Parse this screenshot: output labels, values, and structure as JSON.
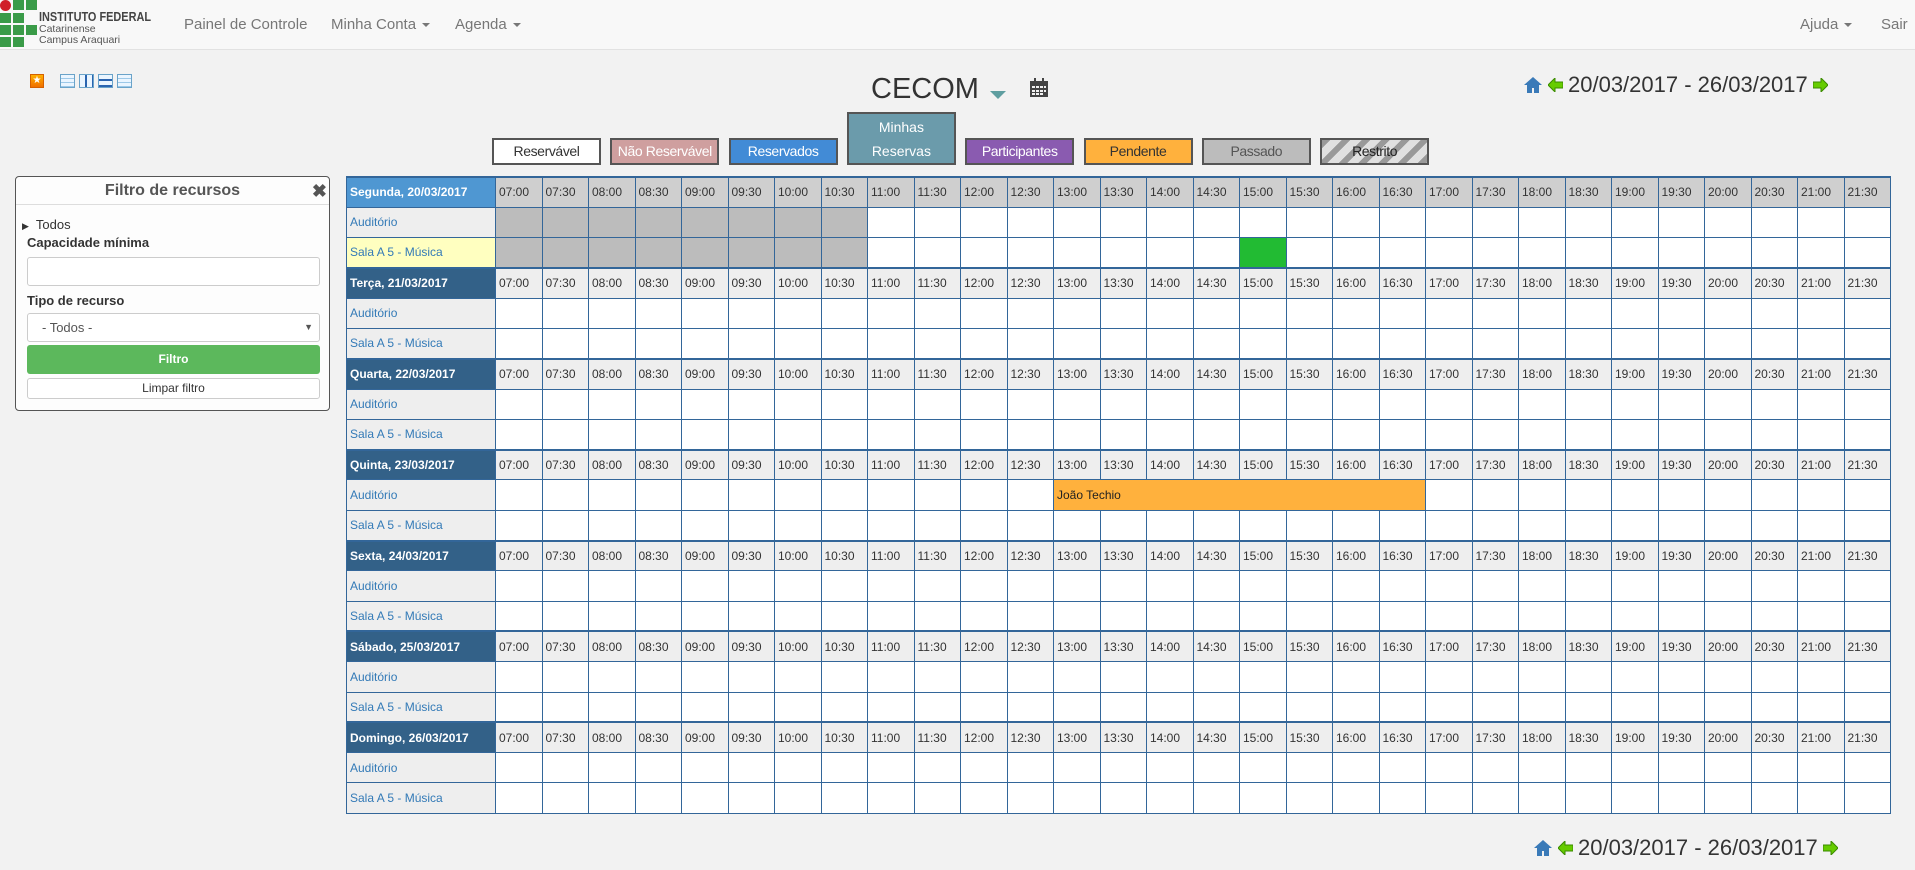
{
  "nav": {
    "logo": {
      "line1": "INSTITUTO FEDERAL",
      "line2": "Catarinense",
      "line3": "Campus Araquari"
    },
    "items": [
      {
        "label": "Painel de Controle",
        "dropdown": false
      },
      {
        "label": "Minha Conta",
        "dropdown": true
      },
      {
        "label": "Agenda",
        "dropdown": true
      }
    ],
    "right": [
      {
        "label": "Ajuda",
        "dropdown": true
      },
      {
        "label": "Sair",
        "dropdown": false
      }
    ]
  },
  "toolbar": {
    "icons": [
      "favorite-star-icon",
      "view-standard-icon",
      "view-columns-icon",
      "view-rows-icon",
      "view-compact-icon"
    ]
  },
  "schedule": {
    "title": "CECOM",
    "date_range": "20/03/2017 - 26/03/2017"
  },
  "legend": [
    {
      "label": "Reservável",
      "bg": "#ffffff",
      "fg": "#333333"
    },
    {
      "label": "Não Reservável",
      "bg": "#cf9f9f",
      "fg": "#ffffff"
    },
    {
      "label": "Reservados",
      "bg": "#428bd6",
      "fg": "#ffffff"
    },
    {
      "label": "Minhas Reservas",
      "bg": "#6b9bab",
      "fg": "#ffffff"
    },
    {
      "label": "Participantes",
      "bg": "#8a5bb0",
      "fg": "#ffffff"
    },
    {
      "label": "Pendente",
      "bg": "#ffb13d",
      "fg": "#333333"
    },
    {
      "label": "Passado",
      "bg": "#bcbcbc",
      "fg": "#555555"
    },
    {
      "label": "Restrito",
      "bg": "striped-gray",
      "fg": "#222222"
    }
  ],
  "filter": {
    "title": "Filtro de recursos",
    "tree_root": "Todos",
    "min_capacity_label": "Capacidade mínima",
    "min_capacity_value": "",
    "resource_type_label": "Tipo de recurso",
    "resource_type_value": "- Todos -",
    "filter_button": "Filtro",
    "clear_button": "Limpar filtro"
  },
  "times": [
    "07:00",
    "07:30",
    "08:00",
    "08:30",
    "09:00",
    "09:30",
    "10:00",
    "10:30",
    "11:00",
    "11:30",
    "12:00",
    "12:30",
    "13:00",
    "13:30",
    "14:00",
    "14:30",
    "15:00",
    "15:30",
    "16:00",
    "16:30",
    "17:00",
    "17:30",
    "18:00",
    "18:30",
    "19:00",
    "19:30",
    "20:00",
    "20:30",
    "21:00",
    "21:30"
  ],
  "resources": [
    "Auditório",
    "Sala A 5 - Música"
  ],
  "days": [
    {
      "label": "Segunda, 20/03/2017",
      "past_until": "11:00",
      "highlight_resource": 1,
      "events": [
        {
          "resource": 1,
          "start": "15:00",
          "end": "15:30",
          "type": "mine",
          "label": ""
        }
      ]
    },
    {
      "label": "Terça, 21/03/2017",
      "events": []
    },
    {
      "label": "Quarta, 22/03/2017",
      "events": []
    },
    {
      "label": "Quinta, 23/03/2017",
      "events": [
        {
          "resource": 0,
          "start": "13:00",
          "end": "17:00",
          "type": "pending",
          "label": "João Techio"
        }
      ]
    },
    {
      "label": "Sexta, 24/03/2017",
      "events": []
    },
    {
      "label": "Sábado, 25/03/2017",
      "events": []
    },
    {
      "label": "Domingo, 26/03/2017",
      "events": []
    }
  ]
}
